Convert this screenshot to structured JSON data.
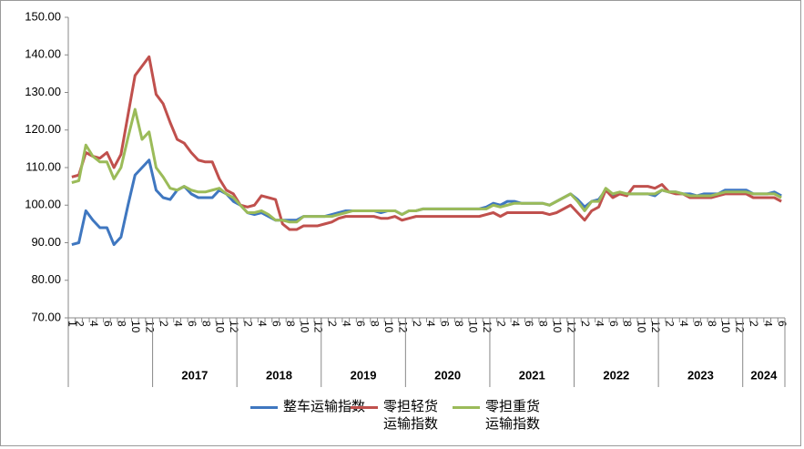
{
  "chart_data": {
    "type": "line",
    "categories": [
      "1",
      "2",
      null,
      "4",
      null,
      "6",
      null,
      "8",
      null,
      "10",
      null,
      "12",
      null,
      "2",
      null,
      "4",
      null,
      "6",
      null,
      "8",
      null,
      "10",
      null,
      "12",
      null,
      "2",
      null,
      "4",
      null,
      "6",
      null,
      "8",
      null,
      "10",
      null,
      "12",
      null,
      "2",
      null,
      "4",
      null,
      "6",
      null,
      "8",
      null,
      "10",
      null,
      "12",
      null,
      "2",
      null,
      "4",
      null,
      "6",
      null,
      "8",
      null,
      "10",
      null,
      "12",
      null,
      "2",
      null,
      "4",
      null,
      "6",
      null,
      "8",
      null,
      "10",
      null,
      "12",
      null,
      "2",
      null,
      "4",
      null,
      "6",
      null,
      "8",
      null,
      "10",
      null,
      "12",
      null,
      "2",
      null,
      "4",
      null,
      "6",
      null,
      "8",
      null,
      "10",
      null,
      "12",
      null,
      "2",
      null,
      "4",
      null,
      "6"
    ],
    "groups": [
      {
        "label": null,
        "count": 12
      },
      {
        "label": "2017",
        "count": 12
      },
      {
        "label": "2018",
        "count": 12
      },
      {
        "label": "2019",
        "count": 12
      },
      {
        "label": "2020",
        "count": 12
      },
      {
        "label": "2021",
        "count": 12
      },
      {
        "label": "2022",
        "count": 12
      },
      {
        "label": "2023",
        "count": 12
      },
      {
        "label": "2024",
        "count": 6
      }
    ],
    "series": [
      {
        "name": "整车运输指数",
        "color": "#3f77c0",
        "values": [
          89.5,
          90,
          98.5,
          96,
          94,
          94,
          89.5,
          91.5,
          100,
          108,
          110,
          112,
          104,
          102,
          101.5,
          104,
          105,
          103,
          102,
          102,
          102,
          104,
          103,
          101,
          100,
          98,
          97.5,
          98,
          97,
          96,
          96,
          96,
          96,
          97,
          97,
          97,
          97,
          97.5,
          98,
          98.5,
          98.5,
          98.5,
          98.5,
          98.5,
          98,
          98.5,
          98.5,
          97.5,
          98.5,
          98.5,
          99,
          99,
          99,
          99,
          99,
          99,
          99,
          99,
          99,
          99.5,
          100.5,
          100,
          101,
          101,
          100.5,
          100.5,
          100.5,
          100.5,
          100,
          101,
          102,
          103,
          101.5,
          99.5,
          101,
          101.5,
          104,
          102.5,
          103,
          103,
          103,
          103,
          103,
          102.5,
          104,
          103.5,
          103.5,
          103,
          103,
          102.5,
          103,
          103,
          103,
          104,
          104,
          104,
          104,
          103,
          103,
          103,
          103.5,
          102.5
        ]
      },
      {
        "name": "零担轻货运输指数",
        "color": "#c0504d",
        "values": [
          107.5,
          108,
          114,
          113,
          112.5,
          114,
          110,
          113.5,
          124,
          134.5,
          137,
          139.5,
          129.5,
          127,
          122,
          117.5,
          116.5,
          114,
          112,
          111.5,
          111.5,
          107,
          104,
          103,
          100,
          99.5,
          100,
          102.5,
          102,
          101.5,
          95,
          93.5,
          93.5,
          94.5,
          94.5,
          94.5,
          95,
          95.5,
          96.5,
          97,
          97,
          97,
          97,
          97,
          96.5,
          96.5,
          97,
          96,
          96.5,
          97,
          97,
          97,
          97,
          97,
          97,
          97,
          97,
          97,
          97,
          97.5,
          98,
          97,
          98,
          98,
          98,
          98,
          98,
          98,
          97.5,
          98,
          99,
          100,
          98,
          96,
          98.5,
          99.5,
          104,
          102,
          103,
          102.5,
          105,
          105,
          105,
          104.5,
          105.5,
          103.5,
          103,
          103,
          102,
          102,
          102,
          102,
          102.5,
          103,
          103,
          103,
          103,
          102,
          102,
          102,
          102,
          101
        ]
      },
      {
        "name": "零担重货运输指数",
        "color": "#9bbb59",
        "values": [
          106,
          106.5,
          116,
          113,
          111.5,
          111.5,
          107,
          110,
          118,
          125.5,
          117.5,
          119.5,
          110,
          107.5,
          104.5,
          104,
          105,
          104,
          103.5,
          103.5,
          104,
          104.5,
          103,
          102,
          100,
          98,
          98,
          98.5,
          97.5,
          96,
          96,
          95.5,
          95.5,
          97,
          97,
          97,
          97,
          97,
          97.5,
          98,
          98.5,
          98.5,
          98.5,
          98.5,
          98.5,
          98.5,
          98.5,
          97.5,
          98.5,
          98.5,
          99,
          99,
          99,
          99,
          99,
          99,
          99,
          99,
          99,
          99,
          100,
          99.5,
          100,
          100.5,
          100.5,
          100.5,
          100.5,
          100.5,
          100,
          101,
          102,
          103,
          101,
          98.5,
          101,
          101,
          104.5,
          103,
          103.5,
          103,
          103,
          103,
          103,
          103,
          104,
          103.5,
          103.5,
          103,
          102.5,
          102.5,
          102.5,
          102.5,
          103,
          103.5,
          103.5,
          103.5,
          103.5,
          103,
          103,
          103,
          103,
          102
        ]
      }
    ],
    "ylim": [
      70,
      150
    ],
    "yticks": [
      {
        "value": 70,
        "label": "70.00"
      },
      {
        "value": 80,
        "label": "80.00"
      },
      {
        "value": 90,
        "label": "90.00"
      },
      {
        "value": 100,
        "label": "100.00"
      },
      {
        "value": 110,
        "label": "110.00"
      },
      {
        "value": 120,
        "label": "120.00"
      },
      {
        "value": 130,
        "label": "130.00"
      },
      {
        "value": 140,
        "label": "140.00"
      },
      {
        "value": 150,
        "label": "150.00"
      }
    ],
    "legend": "bottom"
  }
}
